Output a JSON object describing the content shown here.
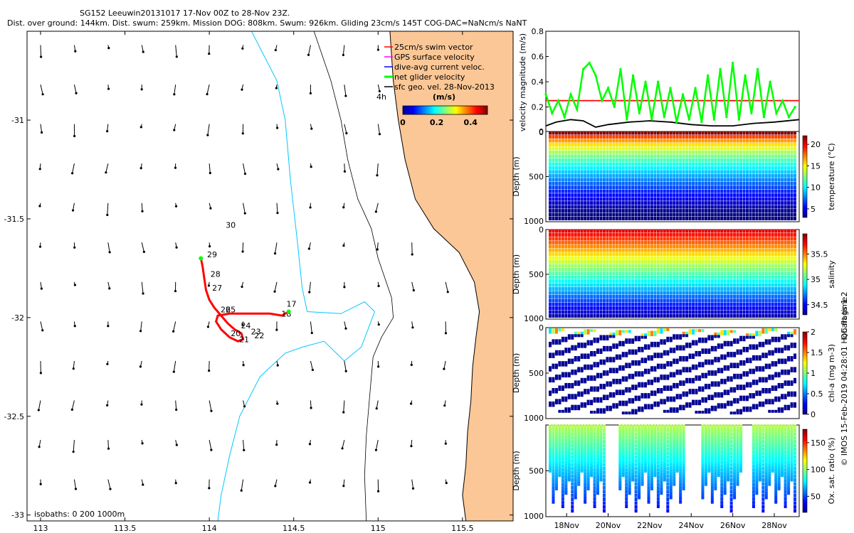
{
  "chart_data": [
    {
      "type": "scatter",
      "name": "glider-track-map",
      "title_line1": "SG152 Leeuwin20131017 17-Nov 00Z to 28-Nov 23Z.",
      "title_line2": "Dist. over ground: 144km. Dist. swum: 259km. Mission DOG: 808km. Swum: 926km. Gliding 23cm/s 145T COG-DAC=NaNcm/s NaNT",
      "xlim": [
        112.92,
        115.8
      ],
      "ylim": [
        -33.03,
        -30.55
      ],
      "x_ticks": [
        {
          "value": 113,
          "label": "113"
        },
        {
          "value": 113.5,
          "label": "113.5"
        },
        {
          "value": 114,
          "label": "114"
        },
        {
          "value": 114.5,
          "label": "114.5"
        },
        {
          "value": 115,
          "label": "115"
        },
        {
          "value": 115.5,
          "label": "115.5"
        }
      ],
      "y_ticks": [
        {
          "value": -31,
          "label": "-31"
        },
        {
          "value": -31.5,
          "label": "-31.5"
        },
        {
          "value": -32,
          "label": "-32"
        },
        {
          "value": -32.5,
          "label": "-32.5"
        },
        {
          "value": -33,
          "label": "-33"
        }
      ],
      "legend": [
        {
          "label": "25cm/s swim vector",
          "color": "#ff0000"
        },
        {
          "label": "GPS surface velocity",
          "color": "#ff00ff"
        },
        {
          "label": "dive-avg current veloc.",
          "color": "#0000ff"
        },
        {
          "label": "net glider velocity",
          "color": "#00ff00"
        },
        {
          "label": "sfc geo. vel. 28-Nov-2013",
          "color": "#000000"
        }
      ],
      "legend_extra": "4h",
      "colorbar_label": "(m/s)",
      "colorbar_ticks": [
        {
          "value": 0,
          "label": "0"
        },
        {
          "value": 0.2,
          "label": "0.2"
        },
        {
          "value": 0.4,
          "label": "0.4"
        }
      ],
      "colorbar_range": [
        0,
        0.5
      ],
      "isobaths_label": "isobaths: 0   200  1000m",
      "day_labels": [
        {
          "label": "17",
          "lon": 114.44,
          "lat": -31.93
        },
        {
          "label": "18",
          "lon": 114.41,
          "lat": -31.98
        },
        {
          "label": "22",
          "lon": 114.25,
          "lat": -32.09
        },
        {
          "label": "23",
          "lon": 114.23,
          "lat": -32.07
        },
        {
          "label": "24",
          "lon": 114.17,
          "lat": -32.04
        },
        {
          "label": "25",
          "lon": 114.08,
          "lat": -31.96
        },
        {
          "label": "21",
          "lon": 114.16,
          "lat": -32.11
        },
        {
          "label": "20",
          "lon": 114.11,
          "lat": -32.08
        },
        {
          "label": "26",
          "lon": 114.05,
          "lat": -31.96
        },
        {
          "label": "27",
          "lon": 114.0,
          "lat": -31.85
        },
        {
          "label": "28",
          "lon": 113.99,
          "lat": -31.78
        },
        {
          "label": "29",
          "lon": 113.97,
          "lat": -31.68
        },
        {
          "label": "30",
          "lon": 114.08,
          "lat": -31.53
        }
      ],
      "track": [
        [
          113.95,
          -31.7
        ],
        [
          113.96,
          -31.74
        ],
        [
          113.97,
          -31.8
        ],
        [
          113.98,
          -31.86
        ],
        [
          114.0,
          -31.91
        ],
        [
          114.03,
          -31.95
        ],
        [
          114.07,
          -31.99
        ],
        [
          114.11,
          -32.03
        ],
        [
          114.15,
          -32.06
        ],
        [
          114.19,
          -32.08
        ],
        [
          114.2,
          -32.11
        ],
        [
          114.17,
          -32.12
        ],
        [
          114.12,
          -32.1
        ],
        [
          114.07,
          -32.06
        ],
        [
          114.04,
          -32.02
        ],
        [
          114.05,
          -31.99
        ],
        [
          114.12,
          -31.98
        ],
        [
          114.2,
          -31.98
        ],
        [
          114.28,
          -31.98
        ],
        [
          114.36,
          -31.98
        ],
        [
          114.43,
          -31.99
        ],
        [
          114.47,
          -31.97
        ]
      ],
      "coast": [
        [
          115.07,
          -30.55
        ],
        [
          115.09,
          -30.8
        ],
        [
          115.12,
          -31.0
        ],
        [
          115.16,
          -31.2
        ],
        [
          115.22,
          -31.4
        ],
        [
          115.33,
          -31.55
        ],
        [
          115.48,
          -31.67
        ],
        [
          115.57,
          -31.82
        ],
        [
          115.6,
          -31.97
        ],
        [
          115.58,
          -32.1
        ],
        [
          115.56,
          -32.25
        ],
        [
          115.55,
          -32.42
        ],
        [
          115.53,
          -32.58
        ],
        [
          115.52,
          -32.75
        ],
        [
          115.5,
          -32.9
        ],
        [
          115.52,
          -33.03
        ]
      ],
      "isobath_200": [
        [
          114.62,
          -30.55
        ],
        [
          114.72,
          -30.8
        ],
        [
          114.78,
          -31.0
        ],
        [
          114.82,
          -31.2
        ],
        [
          114.88,
          -31.4
        ],
        [
          114.96,
          -31.55
        ],
        [
          115.0,
          -31.7
        ],
        [
          115.08,
          -31.9
        ],
        [
          115.09,
          -32.0
        ],
        [
          115.02,
          -32.1
        ],
        [
          114.97,
          -32.2
        ],
        [
          114.95,
          -32.4
        ],
        [
          114.93,
          -32.6
        ],
        [
          114.92,
          -32.8
        ],
        [
          114.93,
          -33.03
        ]
      ],
      "isobath_1000": [
        [
          114.25,
          -30.55
        ],
        [
          114.4,
          -30.8
        ],
        [
          114.45,
          -31.0
        ],
        [
          114.48,
          -31.3
        ],
        [
          114.52,
          -31.6
        ],
        [
          114.55,
          -31.85
        ],
        [
          114.58,
          -31.97
        ],
        [
          114.78,
          -31.98
        ],
        [
          114.92,
          -31.92
        ],
        [
          114.98,
          -31.97
        ],
        [
          114.9,
          -32.15
        ],
        [
          114.8,
          -32.22
        ],
        [
          114.68,
          -32.12
        ],
        [
          114.55,
          -32.15
        ],
        [
          114.45,
          -32.18
        ],
        [
          114.3,
          -32.3
        ],
        [
          114.18,
          -32.5
        ],
        [
          114.12,
          -32.7
        ],
        [
          114.07,
          -32.9
        ],
        [
          114.05,
          -33.03
        ]
      ]
    },
    {
      "type": "line",
      "name": "velocity-magnitude",
      "ylabel": "velocity magnitude (m/s)",
      "ylim": [
        0,
        0.8
      ],
      "y_ticks": [
        {
          "value": 0,
          "label": "0"
        },
        {
          "value": 0.2,
          "label": "0.2"
        },
        {
          "value": 0.4,
          "label": "0.4"
        },
        {
          "value": 0.6,
          "label": "0.6"
        },
        {
          "value": 0.8,
          "label": "0.8"
        }
      ],
      "xlim": [
        17,
        29.2
      ],
      "series": [
        {
          "name": "25cm/s swim vector",
          "color": "#ff0000",
          "x": [
            17,
            29.2
          ],
          "values": [
            0.25,
            0.25
          ]
        },
        {
          "name": "sfc geo. vel.",
          "color": "#000000",
          "x": [
            17,
            17.5,
            18.2,
            18.8,
            19.4,
            20,
            21,
            22,
            23,
            24,
            25,
            26,
            27,
            28,
            29.2
          ],
          "values": [
            0.05,
            0.08,
            0.1,
            0.09,
            0.04,
            0.06,
            0.08,
            0.09,
            0.08,
            0.06,
            0.05,
            0.05,
            0.07,
            0.08,
            0.1
          ]
        },
        {
          "name": "net glider velocity",
          "color": "#00ff00",
          "x": [
            17,
            17.3,
            17.6,
            17.9,
            18.2,
            18.5,
            18.8,
            19.1,
            19.4,
            19.7,
            20,
            20.3,
            20.6,
            20.9,
            21.2,
            21.5,
            21.8,
            22.1,
            22.4,
            22.7,
            23,
            23.3,
            23.6,
            23.9,
            24.2,
            24.5,
            24.8,
            25.1,
            25.4,
            25.7,
            26,
            26.3,
            26.6,
            26.9,
            27.2,
            27.5,
            27.8,
            28.1,
            28.4,
            28.7,
            29
          ],
          "values": [
            0.3,
            0.15,
            0.25,
            0.12,
            0.3,
            0.18,
            0.5,
            0.55,
            0.45,
            0.25,
            0.35,
            0.2,
            0.5,
            0.1,
            0.45,
            0.15,
            0.4,
            0.1,
            0.4,
            0.12,
            0.35,
            0.08,
            0.3,
            0.1,
            0.35,
            0.08,
            0.45,
            0.1,
            0.5,
            0.12,
            0.55,
            0.1,
            0.45,
            0.15,
            0.5,
            0.12,
            0.4,
            0.15,
            0.25,
            0.12,
            0.2
          ]
        }
      ]
    },
    {
      "type": "scatter",
      "name": "temperature-section",
      "ylabel": "Depth (m)",
      "y_ticks": [
        {
          "value": 0,
          "label": "0"
        },
        {
          "value": 500,
          "label": "500"
        },
        {
          "value": 1000,
          "label": "1000"
        }
      ],
      "colorbar_label": "temperature (°C)",
      "colorbar_ticks": [
        {
          "value": 5,
          "label": "5"
        },
        {
          "value": 10,
          "label": "10"
        },
        {
          "value": 15,
          "label": "15"
        },
        {
          "value": 20,
          "label": "20"
        }
      ],
      "crange": [
        3,
        22
      ]
    },
    {
      "type": "scatter",
      "name": "salinity-section",
      "ylabel": "Depth (m)",
      "y_ticks": [
        {
          "value": 0,
          "label": "0"
        },
        {
          "value": 500,
          "label": "500"
        },
        {
          "value": 1000,
          "label": "1000"
        }
      ],
      "colorbar_label": "salinity",
      "colorbar_ticks": [
        {
          "value": 34.5,
          "label": "34.5"
        },
        {
          "value": 35,
          "label": "35"
        },
        {
          "value": 35.5,
          "label": "35.5"
        }
      ],
      "crange": [
        34.3,
        35.9
      ]
    },
    {
      "type": "scatter",
      "name": "chlorophyll-section",
      "ylabel": "Depth (m)",
      "y_ticks": [
        {
          "value": 0,
          "label": "0"
        },
        {
          "value": 500,
          "label": "500"
        },
        {
          "value": 1000,
          "label": "1000"
        }
      ],
      "colorbar_label": "chl-a (mg m-3)",
      "colorbar_ticks": [
        {
          "value": 0,
          "label": "0"
        },
        {
          "value": 0.5,
          "label": "0.5"
        },
        {
          "value": 1,
          "label": "1"
        },
        {
          "value": 1.5,
          "label": "1.5"
        },
        {
          "value": 2,
          "label": "2"
        }
      ],
      "crange": [
        0,
        2
      ]
    },
    {
      "type": "scatter",
      "name": "oxygen-section",
      "ylabel": "Depth (m)",
      "y_ticks": [
        {
          "value": 500,
          "label": "500"
        },
        {
          "value": 1000,
          "label": "1000"
        }
      ],
      "colorbar_label": "Ox. sat. ratio (%)",
      "colorbar_ticks": [
        {
          "value": 50,
          "label": "50"
        },
        {
          "value": 100,
          "label": "100"
        },
        {
          "value": 150,
          "label": "150"
        }
      ],
      "crange": [
        20,
        175
      ],
      "x_ticks": [
        {
          "value": 18,
          "label": "18Nov"
        },
        {
          "value": 20,
          "label": "20Nov"
        },
        {
          "value": 22,
          "label": "22Nov"
        },
        {
          "value": 24,
          "label": "24Nov"
        },
        {
          "value": 26,
          "label": "26Nov"
        },
        {
          "value": 28,
          "label": "28Nov"
        }
      ],
      "xlim": [
        17,
        29.2
      ]
    }
  ],
  "side_text": "QC flags 1  2",
  "credit_text": "© IMOS 15-Feb-2019 04:28:01 Hobart time."
}
